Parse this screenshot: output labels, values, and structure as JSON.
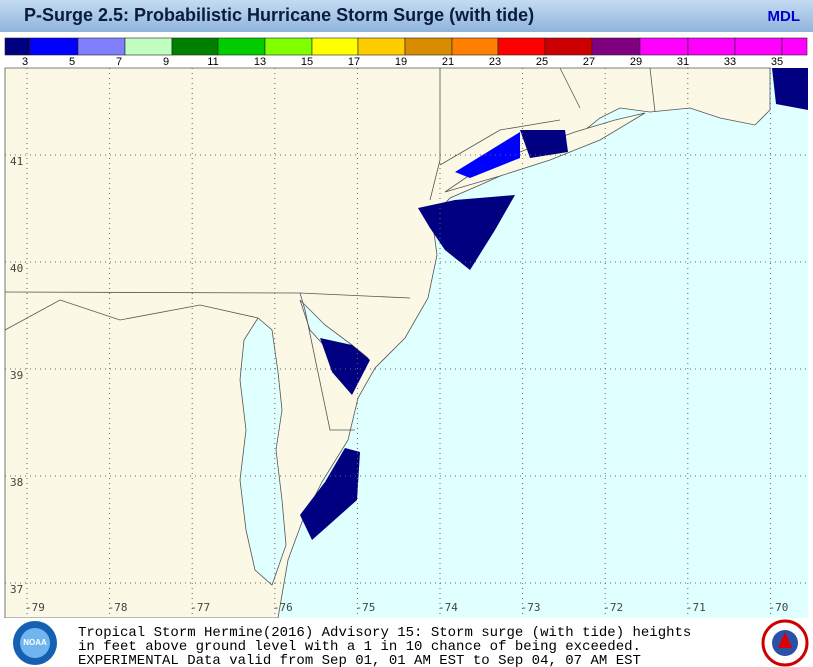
{
  "header": {
    "title": "P-Surge 2.5: Probabilistic Hurricane Storm Surge (with tide)",
    "source": "MDL"
  },
  "legend": {
    "colors": [
      "#000080",
      "#0000ff",
      "#8080ff",
      "#c0ffc0",
      "#008000",
      "#00cc00",
      "#80ff00",
      "#ffff00",
      "#ffcc00",
      "#d98c00",
      "#ff8000",
      "#ff0000",
      "#cc0000",
      "#800080",
      "#ff00ff",
      "#ff00ff",
      "#ff00ff",
      "#ff00ff"
    ],
    "labels": [
      3,
      5,
      7,
      9,
      11,
      13,
      15,
      17,
      19,
      21,
      23,
      25,
      27,
      29,
      31,
      33,
      35
    ]
  },
  "map": {
    "lat_ticks": [
      41,
      40,
      39,
      38,
      37
    ],
    "lon_ticks": [
      -79,
      -78,
      -77,
      -76,
      -75,
      -74,
      -73,
      -72,
      -71,
      -70
    ]
  },
  "footer": {
    "lines": [
      "Tropical Storm Hermine(2016) Advisory 15: Storm surge (with tide) heights",
      "in feet above ground level with a 1 in 10 chance of being exceeded.",
      "EXPERIMENTAL Data valid from Sep 01, 01 AM EST to Sep 04, 07 AM EST"
    ],
    "logo": "NOAA"
  }
}
